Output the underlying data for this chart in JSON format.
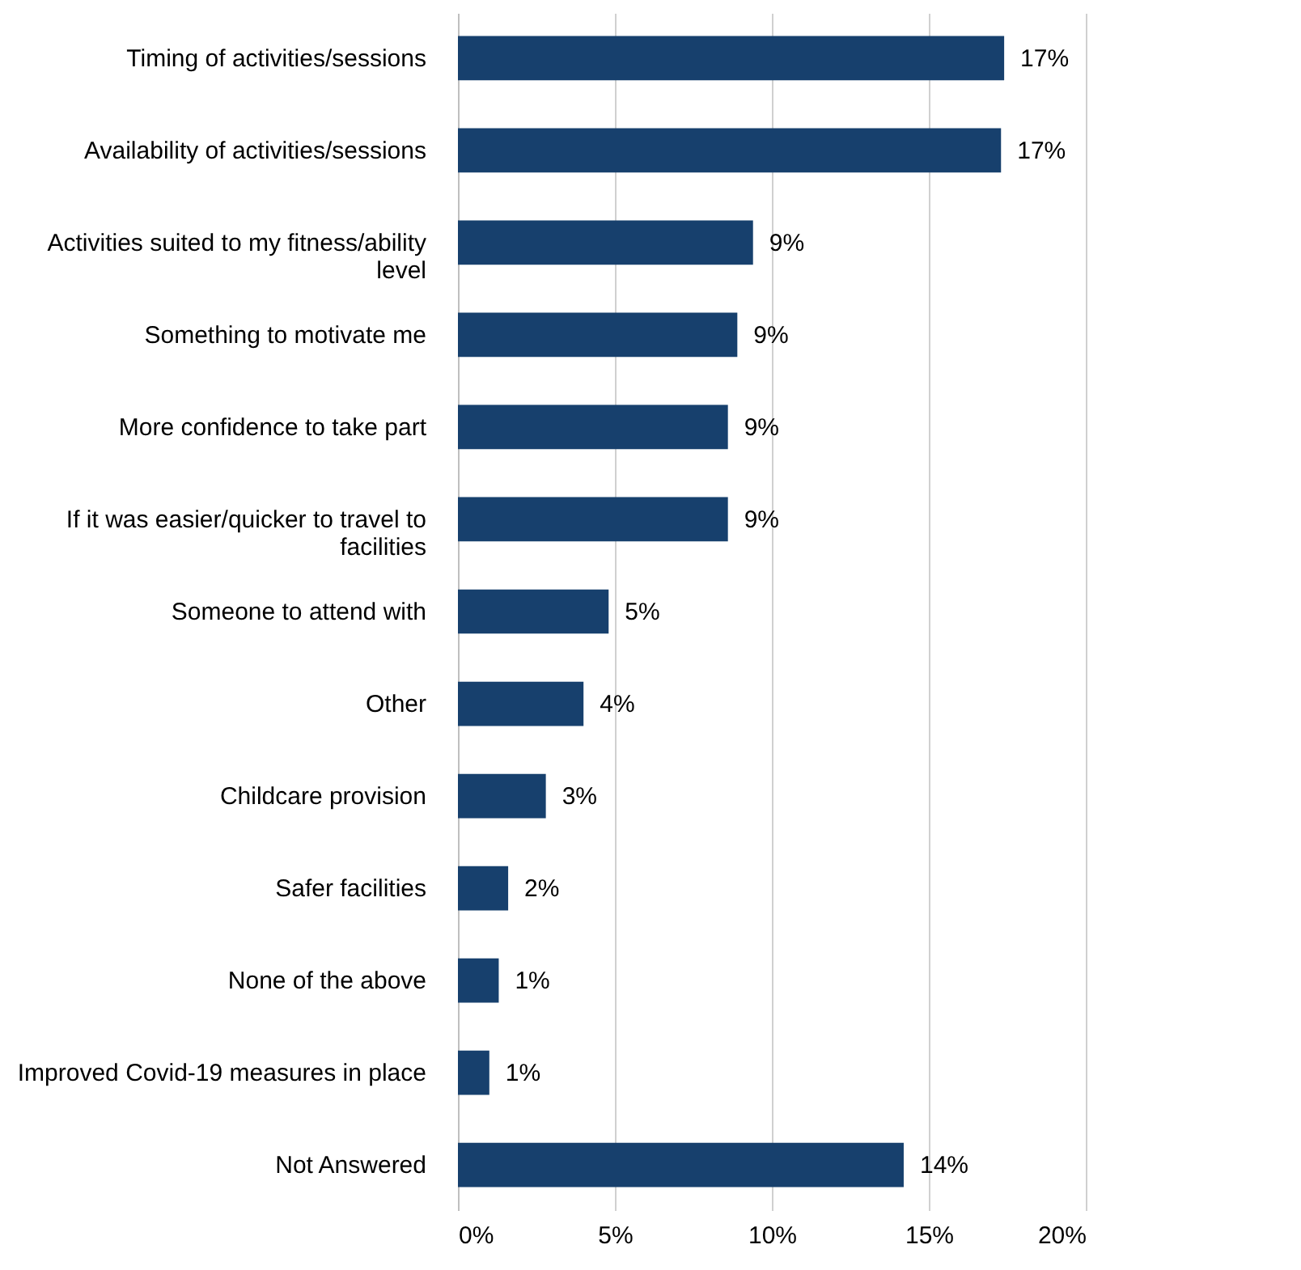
{
  "chart_data": {
    "type": "bar",
    "orientation": "horizontal",
    "categories": [
      "Timing of activities/sessions",
      "Availability of activities/sessions",
      "Activities suited to my fitness/ability level",
      "Something to motivate me",
      "More confidence to take part",
      "If it was easier/quicker to travel to facilities",
      "Someone to attend with",
      "Other",
      "Childcare provision",
      "Safer facilities",
      "None of the above",
      "Improved Covid-19 measures in place",
      "Not Answered"
    ],
    "values": [
      17.4,
      17.3,
      9.4,
      8.9,
      8.6,
      8.6,
      4.8,
      4.0,
      2.8,
      1.6,
      1.3,
      1.0,
      14.2
    ],
    "value_labels": [
      "17%",
      "17%",
      "9%",
      "9%",
      "9%",
      "9%",
      "5%",
      "4%",
      "3%",
      "2%",
      "1%",
      "1%",
      "14%"
    ],
    "color": "#17406d",
    "xlim": [
      0,
      20
    ],
    "xticks": [
      {
        "value": 0,
        "label": "0%"
      },
      {
        "value": 5,
        "label": "5%"
      },
      {
        "value": 10,
        "label": "10%"
      },
      {
        "value": 15,
        "label": "15%"
      },
      {
        "value": 20,
        "label": "20%"
      }
    ],
    "grid": "x"
  }
}
